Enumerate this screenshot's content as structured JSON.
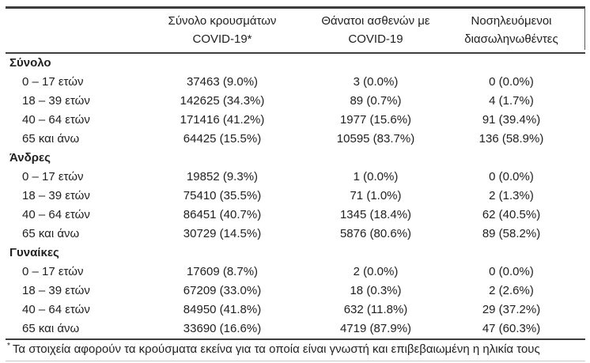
{
  "table": {
    "columns": [
      {
        "lines": [
          "Σύνολο κρουσμάτων",
          "COVID-19*"
        ]
      },
      {
        "lines": [
          "Θάνατοι ασθενών με",
          "COVID-19"
        ]
      },
      {
        "lines": [
          "Νοσηλευόμενοι",
          "διασωληνωθέντες"
        ]
      }
    ],
    "sections": [
      {
        "title": "Σύνολο",
        "rows": [
          {
            "label": "0 – 17 ετών",
            "cases": "37463 (9.0%)",
            "deaths": "3 (0.0%)",
            "intubated": "0 (0.0%)"
          },
          {
            "label": "18 – 39 ετών",
            "cases": "142625 (34.3%)",
            "deaths": "89 (0.7%)",
            "intubated": "4 (1.7%)"
          },
          {
            "label": "40 – 64 ετών",
            "cases": "171416 (41.2%)",
            "deaths": "1977 (15.6%)",
            "intubated": "91 (39.4%)"
          },
          {
            "label": "65 και άνω",
            "cases": "64425 (15.5%)",
            "deaths": "10595 (83.7%)",
            "intubated": "136 (58.9%)"
          }
        ]
      },
      {
        "title": "Άνδρες",
        "rows": [
          {
            "label": "0 – 17 ετών",
            "cases": "19852 (9.3%)",
            "deaths": "1 (0.0%)",
            "intubated": "0 (0.0%)"
          },
          {
            "label": "18 – 39 ετών",
            "cases": "75410 (35.5%)",
            "deaths": "71 (1.0%)",
            "intubated": "2 (1.3%)"
          },
          {
            "label": "40 – 64 ετών",
            "cases": "86451 (40.7%)",
            "deaths": "1345 (18.4%)",
            "intubated": "62 (40.5%)"
          },
          {
            "label": "65 και άνω",
            "cases": "30729 (14.5%)",
            "deaths": "5876 (80.6%)",
            "intubated": "89 (58.2%)"
          }
        ]
      },
      {
        "title": "Γυναίκες",
        "rows": [
          {
            "label": "0 – 17 ετών",
            "cases": "17609 (8.7%)",
            "deaths": "2 (0.0%)",
            "intubated": "0 (0.0%)"
          },
          {
            "label": "18 – 39 ετών",
            "cases": "67209 (33.0%)",
            "deaths": "18 (0.3%)",
            "intubated": "2 (2.6%)"
          },
          {
            "label": "40 – 64 ετών",
            "cases": "84950 (41.8%)",
            "deaths": "632 (11.8%)",
            "intubated": "29 (37.2%)"
          },
          {
            "label": "65 και άνω",
            "cases": "33690 (16.6%)",
            "deaths": "4719 (87.9%)",
            "intubated": "47 (60.3%)"
          }
        ]
      }
    ],
    "footnote": {
      "marker": "*",
      "text": "Τα στοιχεία αφορούν τα κρούσματα εκείνα για τα οποία είναι γνωστή και επιβεβαιωμένη η ηλικία τους"
    }
  },
  "colors": {
    "text": "#212121",
    "rule_heavy": "#3d3d3d",
    "rule_light": "#c9c9c9"
  }
}
